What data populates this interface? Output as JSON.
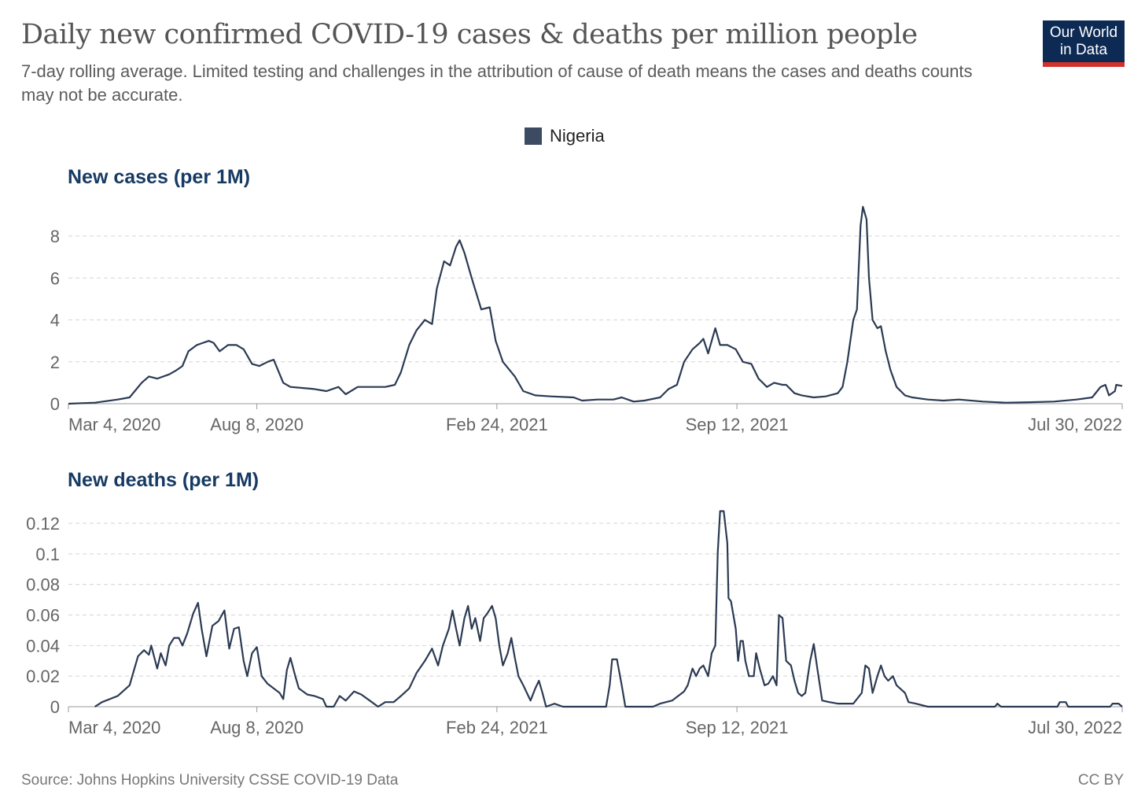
{
  "header": {
    "title": "Daily new confirmed COVID-19 cases & deaths per million people",
    "subtitle": "7-day rolling average. Limited testing and challenges in the attribution of cause of death means the cases and deaths counts may not be accurate.",
    "logo_line1": "Our World",
    "logo_line2": "in Data"
  },
  "legend": {
    "label": "Nigeria",
    "color": "#3d4b62"
  },
  "footer": {
    "source": "Source: Johns Hopkins University CSSE COVID-19 Data",
    "license": "CC BY"
  },
  "colors": {
    "line": "#2b3a52",
    "grid": "#d4d4d4",
    "axis": "#999999",
    "tick_text": "#666666",
    "section_title": "#173a63"
  },
  "chart_data": [
    {
      "type": "line",
      "title": "New cases (per 1M)",
      "series_name": "Nigeria",
      "x_unit": "days since Mar 4, 2020",
      "xlim": [
        0,
        878
      ],
      "ylim": [
        0,
        8
      ],
      "yticks": [
        0,
        2,
        4,
        6,
        8
      ],
      "ytick_labels": [
        "0",
        "2",
        "4",
        "6",
        "8"
      ],
      "xticks": [
        {
          "day": 0,
          "label": "Mar 4, 2020"
        },
        {
          "day": 157,
          "label": "Aug 8, 2020"
        },
        {
          "day": 357,
          "label": "Feb 24, 2021"
        },
        {
          "day": 557,
          "label": "Sep 12, 2021"
        },
        {
          "day": 878,
          "label": "Jul 30, 2022"
        }
      ],
      "grid": true,
      "points": [
        [
          0,
          0
        ],
        [
          22,
          0.05
        ],
        [
          41,
          0.2
        ],
        [
          51,
          0.3
        ],
        [
          61,
          1.0
        ],
        [
          67,
          1.3
        ],
        [
          74,
          1.2
        ],
        [
          84,
          1.4
        ],
        [
          90,
          1.6
        ],
        [
          95,
          1.8
        ],
        [
          100,
          2.5
        ],
        [
          107,
          2.8
        ],
        [
          117,
          3.0
        ],
        [
          121,
          2.9
        ],
        [
          126,
          2.5
        ],
        [
          133,
          2.8
        ],
        [
          140,
          2.8
        ],
        [
          146,
          2.6
        ],
        [
          153,
          1.9
        ],
        [
          159,
          1.8
        ],
        [
          166,
          2.0
        ],
        [
          171,
          2.1
        ],
        [
          179,
          1.0
        ],
        [
          185,
          0.8
        ],
        [
          195,
          0.75
        ],
        [
          205,
          0.7
        ],
        [
          215,
          0.6
        ],
        [
          225,
          0.8
        ],
        [
          231,
          0.45
        ],
        [
          241,
          0.8
        ],
        [
          251,
          0.8
        ],
        [
          264,
          0.8
        ],
        [
          272,
          0.9
        ],
        [
          277,
          1.5
        ],
        [
          284,
          2.8
        ],
        [
          290,
          3.5
        ],
        [
          297,
          4.0
        ],
        [
          303,
          3.8
        ],
        [
          307,
          5.5
        ],
        [
          313,
          6.8
        ],
        [
          318,
          6.6
        ],
        [
          323,
          7.5
        ],
        [
          326,
          7.8
        ],
        [
          330,
          7.2
        ],
        [
          336,
          6.0
        ],
        [
          344,
          4.5
        ],
        [
          351,
          4.6
        ],
        [
          356,
          3.0
        ],
        [
          362,
          2.0
        ],
        [
          372,
          1.3
        ],
        [
          379,
          0.6
        ],
        [
          389,
          0.4
        ],
        [
          402,
          0.35
        ],
        [
          421,
          0.3
        ],
        [
          428,
          0.15
        ],
        [
          441,
          0.2
        ],
        [
          454,
          0.2
        ],
        [
          461,
          0.3
        ],
        [
          471,
          0.1
        ],
        [
          480,
          0.15
        ],
        [
          493,
          0.3
        ],
        [
          500,
          0.7
        ],
        [
          507,
          0.9
        ],
        [
          513,
          2.0
        ],
        [
          520,
          2.6
        ],
        [
          526,
          2.9
        ],
        [
          529,
          3.1
        ],
        [
          533,
          2.4
        ],
        [
          536,
          3.0
        ],
        [
          539,
          3.6
        ],
        [
          543,
          2.8
        ],
        [
          549,
          2.8
        ],
        [
          556,
          2.6
        ],
        [
          562,
          2.0
        ],
        [
          569,
          1.9
        ],
        [
          575,
          1.2
        ],
        [
          582,
          0.8
        ],
        [
          588,
          1.0
        ],
        [
          595,
          0.9
        ],
        [
          598,
          0.9
        ],
        [
          605,
          0.5
        ],
        [
          611,
          0.4
        ],
        [
          621,
          0.3
        ],
        [
          631,
          0.35
        ],
        [
          641,
          0.5
        ],
        [
          645,
          0.8
        ],
        [
          649,
          2.0
        ],
        [
          654,
          4.0
        ],
        [
          657,
          4.5
        ],
        [
          660,
          8.5
        ],
        [
          662,
          9.4
        ],
        [
          665,
          8.8
        ],
        [
          667,
          6.0
        ],
        [
          670,
          4.0
        ],
        [
          674,
          3.6
        ],
        [
          677,
          3.7
        ],
        [
          681,
          2.5
        ],
        [
          685,
          1.6
        ],
        [
          690,
          0.8
        ],
        [
          697,
          0.4
        ],
        [
          703,
          0.3
        ],
        [
          716,
          0.2
        ],
        [
          729,
          0.15
        ],
        [
          742,
          0.2
        ],
        [
          762,
          0.1
        ],
        [
          781,
          0.05
        ],
        [
          801,
          0.07
        ],
        [
          821,
          0.1
        ],
        [
          840,
          0.2
        ],
        [
          853,
          0.3
        ],
        [
          860,
          0.8
        ],
        [
          864,
          0.9
        ],
        [
          867,
          0.4
        ],
        [
          872,
          0.6
        ],
        [
          873,
          0.9
        ],
        [
          878,
          0.85
        ]
      ]
    },
    {
      "type": "line",
      "title": "New deaths (per 1M)",
      "series_name": "Nigeria",
      "x_unit": "days since Mar 4, 2020",
      "xlim": [
        0,
        878
      ],
      "ylim": [
        0,
        0.12
      ],
      "yticks": [
        0,
        0.02,
        0.04,
        0.06,
        0.08,
        0.1,
        0.12
      ],
      "ytick_labels": [
        "0",
        "0.02",
        "0.04",
        "0.06",
        "0.08",
        "0.1",
        "0.12"
      ],
      "xticks": [
        {
          "day": 0,
          "label": "Mar 4, 2020"
        },
        {
          "day": 157,
          "label": "Aug 8, 2020"
        },
        {
          "day": 357,
          "label": "Feb 24, 2021"
        },
        {
          "day": 557,
          "label": "Sep 12, 2021"
        },
        {
          "day": 878,
          "label": "Jul 30, 2022"
        }
      ],
      "grid": true,
      "points": [
        [
          22,
          0
        ],
        [
          28,
          0.003
        ],
        [
          41,
          0.007
        ],
        [
          51,
          0.014
        ],
        [
          58,
          0.033
        ],
        [
          63,
          0.037
        ],
        [
          67,
          0.034
        ],
        [
          69,
          0.04
        ],
        [
          74,
          0.025
        ],
        [
          77,
          0.035
        ],
        [
          81,
          0.027
        ],
        [
          84,
          0.04
        ],
        [
          88,
          0.045
        ],
        [
          92,
          0.045
        ],
        [
          95,
          0.04
        ],
        [
          99,
          0.048
        ],
        [
          104,
          0.061
        ],
        [
          108,
          0.068
        ],
        [
          111,
          0.051
        ],
        [
          115,
          0.033
        ],
        [
          120,
          0.053
        ],
        [
          125,
          0.056
        ],
        [
          130,
          0.063
        ],
        [
          134,
          0.038
        ],
        [
          138,
          0.051
        ],
        [
          142,
          0.052
        ],
        [
          146,
          0.03
        ],
        [
          149,
          0.02
        ],
        [
          153,
          0.035
        ],
        [
          157,
          0.039
        ],
        [
          161,
          0.02
        ],
        [
          166,
          0.015
        ],
        [
          176,
          0.009
        ],
        [
          179,
          0.005
        ],
        [
          182,
          0.024
        ],
        [
          185,
          0.032
        ],
        [
          189,
          0.02
        ],
        [
          192,
          0.012
        ],
        [
          199,
          0.008
        ],
        [
          205,
          0.007
        ],
        [
          212,
          0.005
        ],
        [
          215,
          0
        ],
        [
          221,
          0
        ],
        [
          226,
          0.007
        ],
        [
          231,
          0.004
        ],
        [
          238,
          0.01
        ],
        [
          244,
          0.008
        ],
        [
          251,
          0.004
        ],
        [
          258,
          0
        ],
        [
          264,
          0.003
        ],
        [
          271,
          0.003
        ],
        [
          277,
          0.007
        ],
        [
          284,
          0.012
        ],
        [
          290,
          0.022
        ],
        [
          297,
          0.03
        ],
        [
          303,
          0.038
        ],
        [
          308,
          0.027
        ],
        [
          312,
          0.04
        ],
        [
          317,
          0.051
        ],
        [
          320,
          0.063
        ],
        [
          323,
          0.051
        ],
        [
          326,
          0.04
        ],
        [
          330,
          0.058
        ],
        [
          333,
          0.066
        ],
        [
          336,
          0.051
        ],
        [
          339,
          0.058
        ],
        [
          343,
          0.043
        ],
        [
          346,
          0.058
        ],
        [
          349,
          0.061
        ],
        [
          353,
          0.066
        ],
        [
          356,
          0.058
        ],
        [
          359,
          0.04
        ],
        [
          362,
          0.027
        ],
        [
          366,
          0.035
        ],
        [
          369,
          0.045
        ],
        [
          372,
          0.032
        ],
        [
          375,
          0.02
        ],
        [
          379,
          0.014
        ],
        [
          382,
          0.009
        ],
        [
          385,
          0.004
        ],
        [
          389,
          0.012
        ],
        [
          392,
          0.017
        ],
        [
          395,
          0.009
        ],
        [
          398,
          0
        ],
        [
          405,
          0.002
        ],
        [
          412,
          0
        ],
        [
          448,
          0
        ],
        [
          451,
          0.014
        ],
        [
          453,
          0.031
        ],
        [
          457,
          0.031
        ],
        [
          461,
          0.014
        ],
        [
          464,
          0
        ],
        [
          487,
          0
        ],
        [
          493,
          0.002
        ],
        [
          503,
          0.004
        ],
        [
          513,
          0.01
        ],
        [
          516,
          0.014
        ],
        [
          520,
          0.025
        ],
        [
          523,
          0.02
        ],
        [
          526,
          0.025
        ],
        [
          529,
          0.027
        ],
        [
          533,
          0.02
        ],
        [
          536,
          0.035
        ],
        [
          539,
          0.04
        ],
        [
          541,
          0.101
        ],
        [
          543,
          0.128
        ],
        [
          546,
          0.128
        ],
        [
          549,
          0.107
        ],
        [
          550,
          0.071
        ],
        [
          552,
          0.069
        ],
        [
          556,
          0.051
        ],
        [
          558,
          0.03
        ],
        [
          560,
          0.043
        ],
        [
          562,
          0.043
        ],
        [
          564,
          0.03
        ],
        [
          567,
          0.02
        ],
        [
          571,
          0.02
        ],
        [
          573,
          0.035
        ],
        [
          576,
          0.025
        ],
        [
          580,
          0.014
        ],
        [
          583,
          0.015
        ],
        [
          587,
          0.02
        ],
        [
          590,
          0.014
        ],
        [
          592,
          0.06
        ],
        [
          595,
          0.058
        ],
        [
          598,
          0.03
        ],
        [
          602,
          0.027
        ],
        [
          605,
          0.017
        ],
        [
          608,
          0.009
        ],
        [
          611,
          0.007
        ],
        [
          614,
          0.009
        ],
        [
          618,
          0.03
        ],
        [
          621,
          0.041
        ],
        [
          624,
          0.025
        ],
        [
          628,
          0.004
        ],
        [
          634,
          0.003
        ],
        [
          641,
          0.002
        ],
        [
          654,
          0.002
        ],
        [
          661,
          0.009
        ],
        [
          664,
          0.027
        ],
        [
          667,
          0.025
        ],
        [
          670,
          0.009
        ],
        [
          674,
          0.02
        ],
        [
          677,
          0.027
        ],
        [
          680,
          0.02
        ],
        [
          683,
          0.017
        ],
        [
          687,
          0.02
        ],
        [
          690,
          0.014
        ],
        [
          697,
          0.009
        ],
        [
          700,
          0.003
        ],
        [
          706,
          0.002
        ],
        [
          716,
          0
        ],
        [
          772,
          0
        ],
        [
          774,
          0.002
        ],
        [
          777,
          0
        ],
        [
          824,
          0
        ],
        [
          826,
          0.003
        ],
        [
          831,
          0.003
        ],
        [
          833,
          0
        ],
        [
          868,
          0
        ],
        [
          870,
          0.002
        ],
        [
          875,
          0.002
        ],
        [
          878,
          0
        ]
      ]
    }
  ]
}
